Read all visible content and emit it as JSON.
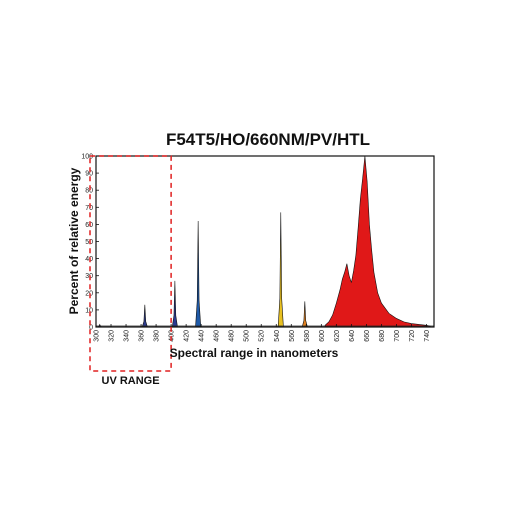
{
  "chart_data": {
    "type": "area",
    "title": "F54T5/HO/660NM/PV/HTL",
    "xlabel": "Spectral range in nanometers",
    "ylabel": "Percent of relative energy",
    "xlim": [
      300,
      750
    ],
    "ylim": [
      0,
      100
    ],
    "x_ticks": [
      300,
      320,
      340,
      360,
      380,
      400,
      420,
      440,
      460,
      480,
      500,
      520,
      540,
      560,
      580,
      600,
      620,
      640,
      660,
      680,
      700,
      720,
      740
    ],
    "y_ticks": [
      0,
      10,
      20,
      30,
      40,
      50,
      60,
      70,
      80,
      90,
      100
    ],
    "grid": false,
    "annotation": {
      "label": "UV RANGE",
      "x_range": [
        300,
        400
      ],
      "style": "red dashed box"
    },
    "series": [
      {
        "color": "#3a2a7a",
        "peak_x": 305,
        "peak_y": 1.5
      },
      {
        "color": "#2e3c8c",
        "peak_x": 365,
        "peak_y": 13
      },
      {
        "color": "#2a3a90",
        "peak_x": 405,
        "peak_y": 27
      },
      {
        "color": "#1f5aa8",
        "peak_x": 436,
        "peak_y": 62
      },
      {
        "color": "#e8c020",
        "peak_x": 546,
        "peak_y": 67
      },
      {
        "color": "#e08020",
        "peak_x": 578,
        "peak_y": 15
      },
      {
        "color": "#e01818",
        "x": [
          605,
          610,
          615,
          620,
          625,
          628,
          631,
          634,
          637,
          640,
          643,
          646,
          649,
          652,
          655,
          658,
          661,
          664,
          667,
          670,
          675,
          680,
          690,
          700,
          710,
          720,
          730,
          740,
          745
        ],
        "y": [
          1,
          3,
          7,
          14,
          22,
          28,
          32,
          37,
          30,
          26,
          33,
          42,
          58,
          75,
          87,
          100,
          85,
          60,
          45,
          32,
          20,
          14,
          8,
          5,
          3,
          2,
          1.5,
          1,
          0.5
        ]
      }
    ]
  }
}
